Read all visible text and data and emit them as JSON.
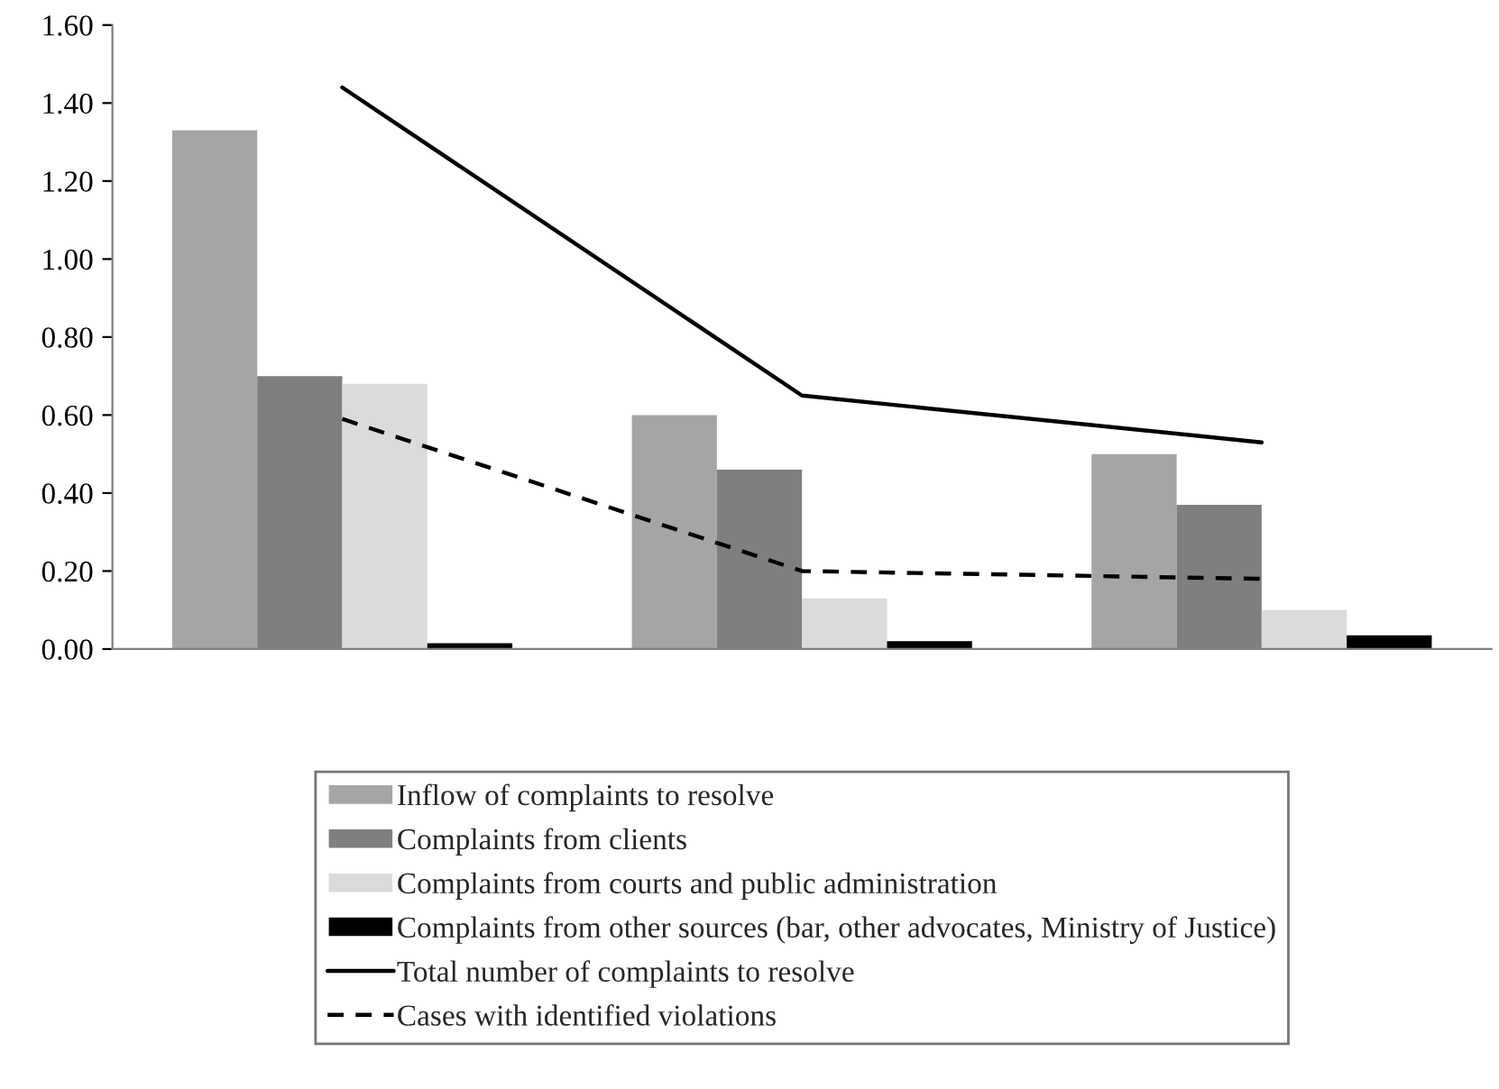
{
  "chart_data": {
    "type": "bar",
    "categories": [
      null,
      null,
      null
    ],
    "series": [
      {
        "name": "Inflow of complaints to resolve",
        "color": "#a5a5a5",
        "values": [
          1.33,
          0.6,
          0.5
        ]
      },
      {
        "name": "Complaints from clients",
        "color": "#7f7f7f",
        "values": [
          0.7,
          0.46,
          0.37
        ]
      },
      {
        "name": "Complaints from courts and public administration",
        "color": "#dbdbdb",
        "values": [
          0.68,
          0.13,
          0.1
        ]
      },
      {
        "name": "Complaints from other sources (bar, other advocates, Ministry of Justice)",
        "color": "#000000",
        "values": [
          0.015,
          0.02,
          0.035
        ]
      },
      {
        "name": "Total number of complaints to resolve",
        "type": "line",
        "line_style": "solid",
        "color": "#000000",
        "values": [
          1.44,
          0.65,
          0.53
        ]
      },
      {
        "name": "Cases with identified violations",
        "type": "line",
        "line_style": "dashed",
        "color": "#000000",
        "values": [
          0.59,
          0.2,
          0.18
        ]
      }
    ],
    "ylim": [
      0,
      1.6
    ],
    "yticks": [
      {
        "value": 0,
        "label": "0.00"
      },
      {
        "value": 0.2,
        "label": "0.20"
      },
      {
        "value": 0.4,
        "label": "0.40"
      },
      {
        "value": 0.6,
        "label": "0.60"
      },
      {
        "value": 0.8,
        "label": "0.80"
      },
      {
        "value": 1.0,
        "label": "1.00"
      },
      {
        "value": 1.2,
        "label": "1.20"
      },
      {
        "value": 1.4,
        "label": "1.40"
      },
      {
        "value": 1.6,
        "label": "1.60"
      }
    ],
    "grid": false,
    "legend": "bottom",
    "tick_labels": "y"
  }
}
